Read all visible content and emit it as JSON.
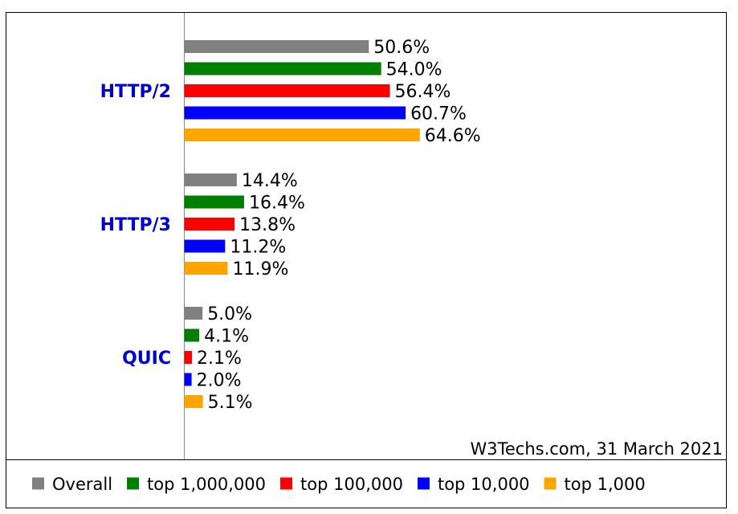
{
  "chart_data": {
    "type": "bar",
    "orientation": "horizontal",
    "categories": [
      "HTTP/2",
      "HTTP/3",
      "QUIC"
    ],
    "series": [
      {
        "name": "Overall",
        "color": "#808080",
        "values": [
          50.6,
          14.4,
          5.0
        ],
        "labels": [
          "50.6%",
          "14.4%",
          "5.0%"
        ]
      },
      {
        "name": "top 1,000,000",
        "color": "#008000",
        "values": [
          54.0,
          16.4,
          4.1
        ],
        "labels": [
          "54.0%",
          "16.4%",
          "4.1%"
        ]
      },
      {
        "name": "top 100,000",
        "color": "#ff0000",
        "values": [
          56.4,
          13.8,
          2.1
        ],
        "labels": [
          "56.4%",
          "13.8%",
          "2.1%"
        ]
      },
      {
        "name": "top 10,000",
        "color": "#0000ff",
        "values": [
          60.7,
          11.2,
          2.0
        ],
        "labels": [
          "60.7%",
          "11.2%",
          "2.0%"
        ]
      },
      {
        "name": "top 1,000",
        "color": "#ffa500",
        "values": [
          64.6,
          11.9,
          5.1
        ],
        "labels": [
          "64.6%",
          "11.9%",
          "5.1%"
        ]
      }
    ],
    "credit": "W3Techs.com, 31 March 2021",
    "legend_position": "bottom",
    "grid": false
  }
}
